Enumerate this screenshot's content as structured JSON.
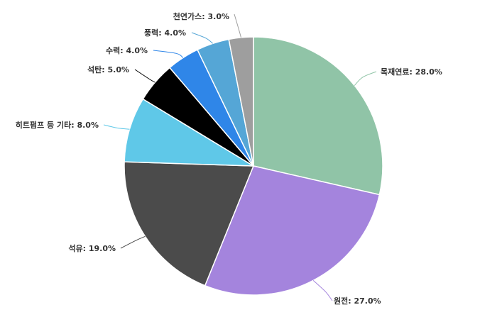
{
  "chart_data": {
    "type": "pie",
    "title": "",
    "slices": [
      {
        "label": "목재연료",
        "value": 28.0,
        "display": "목재연료: 28.0%",
        "color": "#90c4a7",
        "line_color": "#90c4a7"
      },
      {
        "label": "원전",
        "value": 27.0,
        "display": "원전: 27.0%",
        "color": "#a484dd",
        "line_color": "#a484dd"
      },
      {
        "label": "석유",
        "value": 19.0,
        "display": "석유: 19.0%",
        "color": "#4b4b4b",
        "line_color": "#4b4b4b"
      },
      {
        "label": "히트펌프 등 기타",
        "value": 8.0,
        "display": "히트펌프 등 기타: 8.0%",
        "color": "#5fc8e8",
        "line_color": "#5fc8e8"
      },
      {
        "label": "석탄",
        "value": 5.0,
        "display": "석탄: 5.0%",
        "color": "#000000",
        "line_color": "#000000"
      },
      {
        "label": "수력",
        "value": 4.0,
        "display": "수력: 4.0%",
        "color": "#2f86e8",
        "line_color": "#2f86e8"
      },
      {
        "label": "풍력",
        "value": 4.0,
        "display": "풍력: 4.0%",
        "color": "#55a6d6",
        "line_color": "#55a6d6"
      },
      {
        "label": "천연가스",
        "value": 3.0,
        "display": "천연가스: 3.0%",
        "color": "#9e9e9e",
        "line_color": "#9e9e9e"
      }
    ]
  }
}
